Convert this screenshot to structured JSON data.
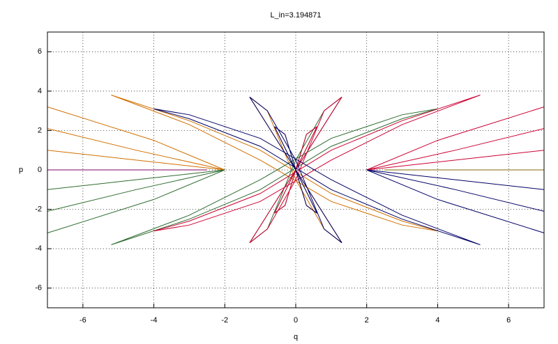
{
  "chart_data": {
    "type": "line",
    "title": "L_in=3.194871",
    "x_label": "q",
    "y_label": "p",
    "xlim": [
      -7,
      7
    ],
    "ylim": [
      -7,
      7
    ],
    "xticks": [
      -6,
      -4,
      -2,
      0,
      2,
      4,
      6
    ],
    "yticks": [
      -6,
      -4,
      -2,
      0,
      2,
      4,
      6
    ],
    "grid": true,
    "series": [
      {
        "color": "#d07000",
        "x": [
          -5.2,
          -3,
          -1,
          1,
          3,
          4,
          3,
          1,
          -1,
          -3,
          -5.2,
          null,
          -7,
          -4,
          -2,
          null,
          -7,
          -4.5,
          -2,
          null,
          -7,
          -4.5,
          -2,
          null,
          -1.3,
          0,
          1.3,
          0.8,
          0,
          -0.8,
          -1.3,
          null,
          -0.6,
          0,
          0.6,
          0.3,
          0,
          -0.3,
          -0.6
        ],
        "values": [
          3.8,
          2.5,
          1.0,
          -1.2,
          -2.6,
          -3.1,
          -2.8,
          -1.6,
          0.5,
          2.3,
          3.8,
          null,
          3.2,
          1.5,
          0,
          null,
          2.1,
          1.0,
          0,
          null,
          1.0,
          0.5,
          0,
          null,
          3.7,
          0,
          -3.7,
          -3.0,
          -0.5,
          3.0,
          3.7,
          null,
          2.2,
          0,
          -2.2,
          -1.8,
          0,
          1.8,
          2.2
        ]
      },
      {
        "color": "#2e6b2e",
        "x": [
          -5.2,
          -3,
          -1,
          1,
          3,
          4,
          3,
          1,
          -1,
          -3,
          -5.2,
          null,
          -7,
          -4,
          -2,
          null,
          -7,
          -4.5,
          -2,
          null,
          -7,
          -4.5,
          -2,
          null,
          -1.3,
          0,
          1.3,
          0.8,
          0,
          -0.8,
          -1.3,
          null,
          -0.6,
          0,
          0.6,
          0.3,
          0,
          -0.3,
          -0.6
        ],
        "values": [
          -3.8,
          -2.5,
          -1.0,
          1.2,
          2.6,
          3.1,
          2.8,
          1.6,
          -0.5,
          -2.3,
          -3.8,
          null,
          -3.2,
          -1.5,
          0,
          null,
          -2.1,
          -1.0,
          0,
          null,
          -1.0,
          -0.5,
          0,
          null,
          -3.7,
          0,
          3.7,
          3.0,
          0.5,
          -3.0,
          -3.7,
          null,
          -2.2,
          0,
          2.2,
          1.8,
          0,
          -1.8,
          -2.2
        ]
      },
      {
        "color": "#cc0033",
        "x": [
          5.2,
          3,
          1,
          -1,
          -3,
          -4,
          -3,
          -1,
          1,
          3,
          5.2,
          null,
          7,
          4,
          2,
          null,
          7,
          4.5,
          2,
          null,
          7,
          4.5,
          2,
          null,
          1.3,
          0,
          -1.3,
          -0.8,
          0,
          0.8,
          1.3,
          null,
          0.6,
          0,
          -0.6,
          -0.3,
          0,
          0.3,
          0.6
        ],
        "values": [
          3.8,
          2.5,
          1.0,
          -1.2,
          -2.6,
          -3.1,
          -2.8,
          -1.6,
          0.5,
          2.3,
          3.8,
          null,
          3.2,
          1.5,
          0,
          null,
          2.1,
          1.0,
          0,
          null,
          1.0,
          0.5,
          0,
          null,
          3.7,
          0,
          -3.7,
          -3.0,
          -0.5,
          3.0,
          3.7,
          null,
          2.2,
          0,
          -2.2,
          -1.8,
          0,
          1.8,
          2.2
        ]
      },
      {
        "color": "#000066",
        "x": [
          5.2,
          3,
          1,
          -1,
          -3,
          -4,
          -3,
          -1,
          1,
          3,
          5.2,
          null,
          7,
          4,
          2,
          null,
          7,
          4.5,
          2,
          null,
          7,
          4.5,
          2,
          null,
          1.3,
          0,
          -1.3,
          -0.8,
          0,
          0.8,
          1.3,
          null,
          0.6,
          0,
          -0.6,
          -0.3,
          0,
          0.3,
          0.6
        ],
        "values": [
          -3.8,
          -2.5,
          -1.0,
          1.2,
          2.6,
          3.1,
          2.8,
          1.6,
          -0.5,
          -2.3,
          -3.8,
          null,
          -3.2,
          -1.5,
          0,
          null,
          -2.1,
          -1.0,
          0,
          null,
          -1.0,
          -0.5,
          0,
          null,
          -3.7,
          0,
          3.7,
          3.0,
          0.5,
          -3.0,
          -3.7,
          null,
          -2.2,
          0,
          2.2,
          1.8,
          0,
          -1.8,
          -2.2
        ]
      },
      {
        "color": "#800060",
        "x": [
          -7,
          -2.5
        ],
        "values": [
          0,
          0
        ]
      },
      {
        "color": "#806600",
        "x": [
          2.5,
          7
        ],
        "values": [
          0,
          0
        ]
      }
    ]
  }
}
